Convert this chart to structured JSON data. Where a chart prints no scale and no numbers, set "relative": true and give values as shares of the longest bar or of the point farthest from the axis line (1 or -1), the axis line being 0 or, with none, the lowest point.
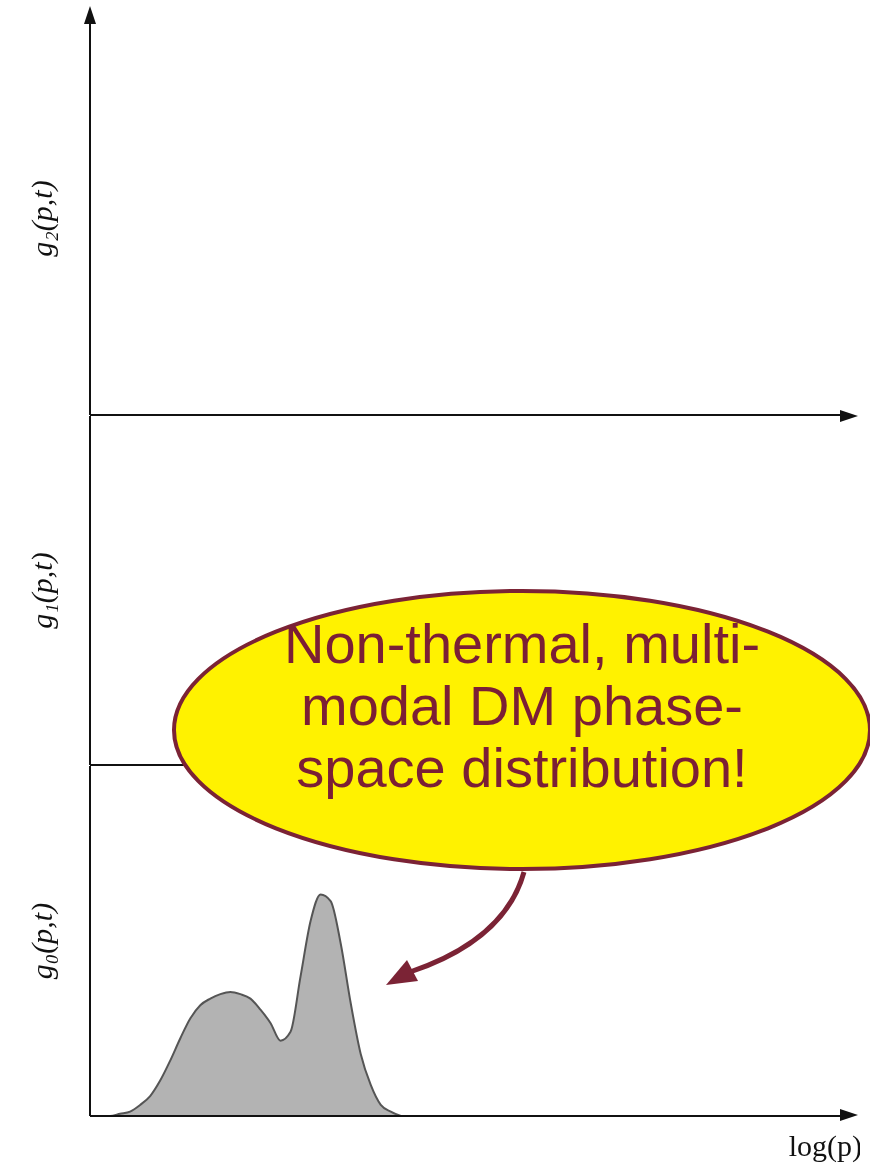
{
  "chart_data": [
    {
      "type": "other",
      "ylabel": "g₂(p,t)"
    },
    {
      "type": "other",
      "ylabel": "g₁(p,t)"
    },
    {
      "type": "area",
      "relative": true,
      "ylabel": "g₀(p,t)",
      "xlabel": "log(p)",
      "color": "#b3b3b3",
      "categories": [
        null,
        null,
        null,
        null,
        null,
        null,
        null,
        null,
        null,
        null,
        null,
        null,
        null,
        null,
        null,
        null,
        null,
        null,
        null,
        null,
        null,
        null,
        null,
        null,
        null,
        null,
        null,
        null,
        null,
        null,
        null,
        null,
        null,
        null,
        null,
        null,
        null,
        null,
        null,
        null,
        null,
        null,
        null,
        null,
        null,
        null,
        null,
        null,
        null,
        null,
        null,
        null,
        null,
        null,
        null,
        null,
        null,
        null,
        null,
        null,
        null,
        null,
        null,
        null,
        null,
        null,
        null,
        null,
        null,
        null,
        null,
        null,
        null,
        null,
        null,
        null,
        null
      ],
      "values": [
        0,
        0,
        0,
        0.01,
        0.02,
        0.05,
        0.09,
        0.16,
        0.25,
        0.35,
        0.44,
        0.5,
        0.53,
        0.55,
        0.56,
        0.55,
        0.53,
        0.48,
        0.42,
        0.34,
        0.38,
        0.63,
        0.88,
        1,
        0.97,
        0.78,
        0.51,
        0.28,
        0.14,
        0.05,
        0.02,
        0,
        null,
        null,
        null,
        null,
        null,
        null,
        null,
        null,
        null,
        null,
        null,
        null,
        null,
        null,
        null,
        null,
        null,
        null,
        null,
        null,
        null,
        null,
        null,
        null,
        null,
        null,
        null,
        null,
        null,
        null,
        null,
        null,
        null,
        null,
        null,
        null,
        null,
        null,
        null,
        null,
        null,
        null,
        null,
        null,
        null
      ],
      "annotations": [
        "Non-thermal, multi-modal DM phase-space distribution!"
      ]
    }
  ]
}
